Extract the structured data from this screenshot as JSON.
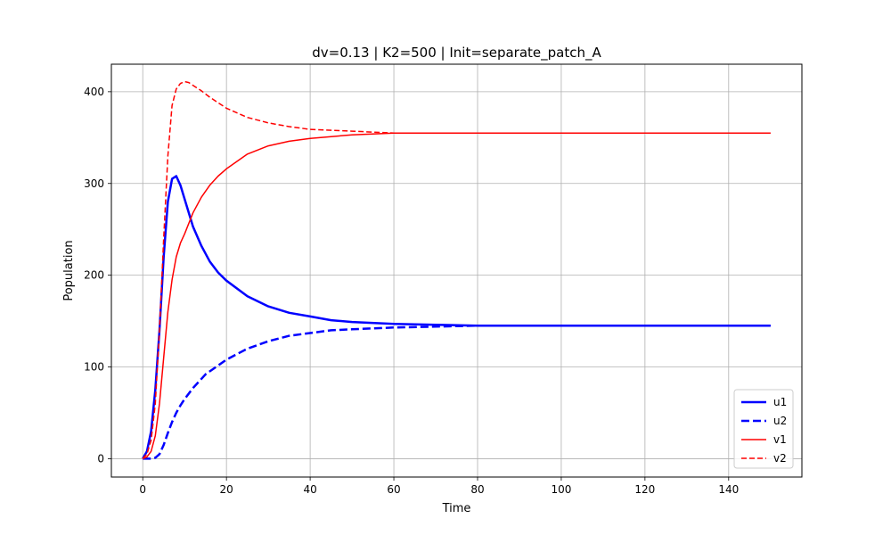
{
  "chart_data": {
    "type": "line",
    "title": "dv=0.13 | K2=500 | Init=separate_patch_A",
    "xlabel": "Time",
    "ylabel": "Population",
    "xlim": [
      -7.5,
      157.5
    ],
    "ylim": [
      -20,
      430
    ],
    "xticks": [
      0,
      20,
      40,
      60,
      80,
      100,
      120,
      140
    ],
    "yticks": [
      0,
      100,
      200,
      300,
      400
    ],
    "grid": true,
    "legend": "lower-right",
    "series": [
      {
        "name": "u1",
        "color": "#0000ff",
        "style": "solid",
        "width": 2.5,
        "x": [
          0,
          1,
          2,
          3,
          4,
          5,
          6,
          7,
          8,
          9,
          10,
          12,
          14,
          16,
          18,
          20,
          25,
          30,
          35,
          40,
          45,
          50,
          60,
          70,
          80,
          100,
          120,
          150
        ],
        "y": [
          0,
          8,
          30,
          75,
          140,
          220,
          280,
          305,
          308,
          298,
          283,
          253,
          232,
          215,
          203,
          194,
          177,
          166,
          159,
          155,
          151,
          149,
          147,
          146,
          145,
          145,
          145,
          145
        ]
      },
      {
        "name": "u2",
        "color": "#0000ff",
        "style": "dashed",
        "width": 2.5,
        "x": [
          0,
          2,
          3,
          4,
          5,
          6,
          7,
          8,
          9,
          10,
          12,
          15,
          20,
          25,
          30,
          35,
          40,
          45,
          50,
          60,
          70,
          80,
          100,
          120,
          150
        ],
        "y": [
          0,
          0,
          1,
          5,
          15,
          28,
          40,
          50,
          58,
          65,
          77,
          92,
          108,
          120,
          128,
          134,
          137,
          140,
          141,
          143,
          144,
          145,
          145,
          145,
          145
        ]
      },
      {
        "name": "v1",
        "color": "#ff0000",
        "style": "solid",
        "width": 1.5,
        "x": [
          0,
          1,
          2,
          3,
          4,
          5,
          6,
          7,
          8,
          9,
          10,
          12,
          14,
          16,
          18,
          20,
          25,
          30,
          35,
          40,
          50,
          60,
          70,
          80,
          100,
          120,
          150
        ],
        "y": [
          0,
          2,
          8,
          25,
          60,
          110,
          160,
          195,
          220,
          235,
          245,
          268,
          285,
          298,
          308,
          316,
          332,
          341,
          346,
          349,
          353,
          355,
          355,
          355,
          355,
          355,
          355
        ]
      },
      {
        "name": "v2",
        "color": "#ff0000",
        "style": "dashed",
        "width": 1.5,
        "x": [
          0,
          1,
          2,
          3,
          4,
          5,
          6,
          7,
          8,
          9,
          10,
          11,
          12,
          14,
          16,
          18,
          20,
          25,
          30,
          35,
          40,
          50,
          60,
          70,
          80,
          100,
          120,
          150
        ],
        "y": [
          0,
          5,
          20,
          60,
          140,
          240,
          330,
          385,
          403,
          409,
          411,
          410,
          407,
          401,
          394,
          388,
          382,
          372,
          366,
          362,
          359,
          357,
          355,
          355,
          355,
          355,
          355,
          355
        ]
      }
    ]
  }
}
